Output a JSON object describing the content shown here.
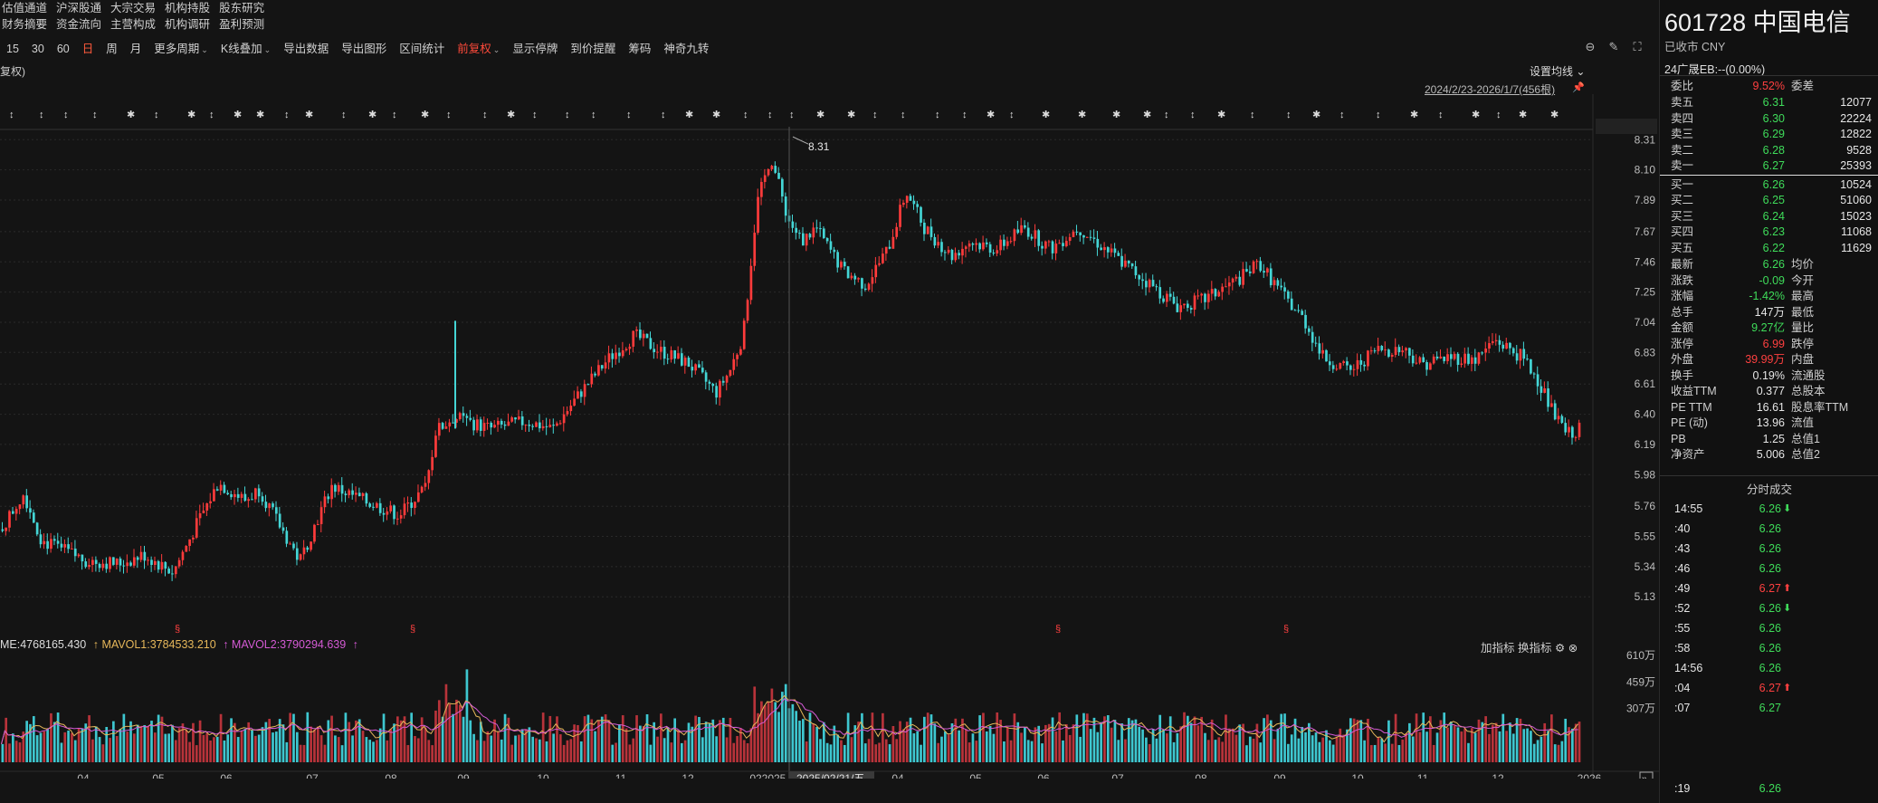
{
  "nav": {
    "row1": [
      "估值通道",
      "沪深股通",
      "大宗交易",
      "机构持股",
      "股东研究"
    ],
    "row2": [
      "财务摘要",
      "资金流向",
      "主营构成",
      "机构调研",
      "盈利预测"
    ]
  },
  "toolbar": {
    "items": [
      "15",
      "30",
      "60",
      "日",
      "周",
      "月",
      "更多周期",
      "K线叠加",
      "导出数据",
      "导出图形",
      "区间统计",
      "前复权",
      "显示停牌",
      "到价提醒",
      "筹码",
      "神奇九转"
    ],
    "active": "日"
  },
  "subheader": {
    "left": "复权)",
    "set_ma": "设置均线",
    "date_range": "2024/2/23-2026/1/7(456根)"
  },
  "chart_axis": {
    "price_ticks": [
      "8.31",
      "8.10",
      "7.89",
      "7.67",
      "7.46",
      "7.25",
      "7.04",
      "6.83",
      "6.61",
      "6.40",
      "6.19",
      "5.98",
      "5.76",
      "5.55",
      "5.34",
      "5.13"
    ],
    "high_label": "8.31",
    "months": [
      "04",
      "05",
      "06",
      "07",
      "08",
      "09",
      "10",
      "11",
      "12",
      "2025",
      "02",
      "2025/02/21/五",
      "04",
      "05",
      "06",
      "07",
      "08",
      "09",
      "10",
      "11",
      "12",
      "2026"
    ],
    "vol_ticks": [
      "610万",
      "459万",
      "307万"
    ]
  },
  "volume_legend": {
    "vol": "ME:4768165.430",
    "mavol1": "MAVOL1:3784533.210",
    "mavol2": "MAVOL2:3790294.639",
    "add_indicator": "加指标",
    "switch_indicator": "换指标"
  },
  "stock": {
    "code": "601728",
    "name": "中国电信",
    "status": "已收市 CNY",
    "sub_line": "24广晟EB:--(0.00%)"
  },
  "orderbook": {
    "wb_label": "委比",
    "wb_value": "9.52%",
    "wc_label": "委差",
    "asks": [
      {
        "label": "卖五",
        "price": "6.31",
        "vol": "12077"
      },
      {
        "label": "卖四",
        "price": "6.30",
        "vol": "22224"
      },
      {
        "label": "卖三",
        "price": "6.29",
        "vol": "12822"
      },
      {
        "label": "卖二",
        "price": "6.28",
        "vol": "9528"
      },
      {
        "label": "卖一",
        "price": "6.27",
        "vol": "25393"
      }
    ],
    "bids": [
      {
        "label": "买一",
        "price": "6.26",
        "vol": "10524"
      },
      {
        "label": "买二",
        "price": "6.25",
        "vol": "51060"
      },
      {
        "label": "买三",
        "price": "6.24",
        "vol": "15023"
      },
      {
        "label": "买四",
        "price": "6.23",
        "vol": "11068"
      },
      {
        "label": "买五",
        "price": "6.22",
        "vol": "11629"
      }
    ]
  },
  "stats": [
    {
      "l": "最新",
      "v": "6.26",
      "c": "green",
      "r": "均价"
    },
    {
      "l": "涨跌",
      "v": "-0.09",
      "c": "green",
      "r": "今开"
    },
    {
      "l": "涨幅",
      "v": "-1.42%",
      "c": "green",
      "r": "最高"
    },
    {
      "l": "总手",
      "v": "147万",
      "c": "white",
      "r": "最低"
    },
    {
      "l": "金额",
      "v": "9.27亿",
      "c": "green",
      "r": "量比"
    },
    {
      "l": "涨停",
      "v": "6.99",
      "c": "red",
      "r": "跌停"
    },
    {
      "l": "外盘",
      "v": "39.99万",
      "c": "red",
      "r": "内盘"
    },
    {
      "l": "换手",
      "v": "0.19%",
      "c": "white",
      "r": "流通股"
    },
    {
      "l": "收益TTM",
      "v": "0.377",
      "c": "white",
      "r": "总股本"
    },
    {
      "l": "PE TTM",
      "v": "16.61",
      "c": "white",
      "r": "股息率TTM"
    },
    {
      "l": "PE (动)",
      "v": "13.96",
      "c": "white",
      "r": "流值"
    },
    {
      "l": "PB",
      "v": "1.25",
      "c": "white",
      "r": "总值1"
    },
    {
      "l": "净资产",
      "v": "5.006",
      "c": "white",
      "r": "总值2"
    }
  ],
  "ticks_title": "分时成交",
  "ticks": [
    {
      "t": "14:55",
      "p": "6.26",
      "a": "down"
    },
    {
      "t": ":40",
      "p": "6.26",
      "a": ""
    },
    {
      "t": ":43",
      "p": "6.26",
      "a": ""
    },
    {
      "t": ":46",
      "p": "6.26",
      "a": ""
    },
    {
      "t": ":49",
      "p": "6.27",
      "a": "up"
    },
    {
      "t": ":52",
      "p": "6.26",
      "a": "down"
    },
    {
      "t": ":55",
      "p": "6.26",
      "a": ""
    },
    {
      "t": ":58",
      "p": "6.26",
      "a": ""
    },
    {
      "t": "14:56",
      "p": "6.26",
      "a": ""
    },
    {
      "t": ":04",
      "p": "6.27",
      "a": "up"
    },
    {
      "t": ":07",
      "p": "6.27",
      "a": ""
    },
    {
      "t": ":19",
      "p": "6.26",
      "a": ""
    }
  ],
  "colors": {
    "up": "#ff3b3b",
    "down": "#44d6d6",
    "bg": "#141414",
    "accent": "#ff5a3c"
  }
}
